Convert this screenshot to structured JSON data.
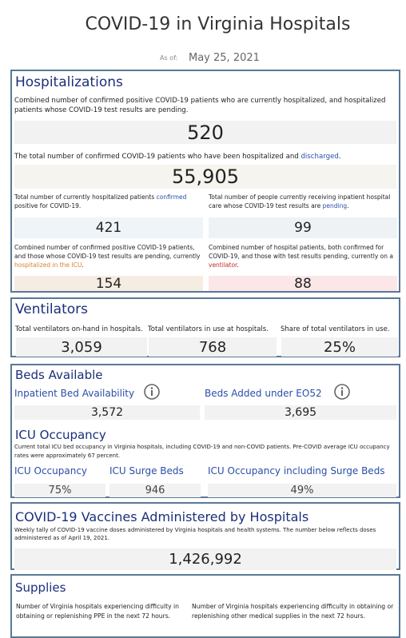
{
  "header": {
    "title": "COVID-19 in Virginia Hospitals",
    "as_of_label": "As of:",
    "date": "May 25, 2021"
  },
  "hospitalizations": {
    "heading": "Hospitalizations",
    "current": {
      "description": [
        {
          "text": "Combined number of confirmed positive COVID-19 patients who are currently hospitalized, and hospitalized patients whose COVID-19 test results are pending."
        }
      ],
      "value": "520"
    },
    "discharged": {
      "description": [
        {
          "text": "The total number of confirmed COVID-19 patients who have been hospitalized and "
        },
        {
          "text": "discharged",
          "color": "#2a4ea6"
        },
        {
          "text": "."
        }
      ],
      "value": "55,905"
    },
    "confirmed": {
      "description": [
        {
          "text": "Total number of currently hospitalized patients "
        },
        {
          "text": "confirmed",
          "color": "#2a4ea6"
        },
        {
          "text": " positive for COVID-19."
        }
      ],
      "value": "421"
    },
    "pending": {
      "description": [
        {
          "text": "Total number of people currently receiving inpatient hospital care whose COVID-19 test results are "
        },
        {
          "text": "pending",
          "color": "#2a4ea6"
        },
        {
          "text": "."
        }
      ],
      "value": "99"
    },
    "icu": {
      "description": [
        {
          "text": "Combined number of confirmed positive COVID-19 patients, and those whose COVID-19 test results are pending, currently "
        },
        {
          "text": "hospitalized in the ICU",
          "color": "#d9822b"
        },
        {
          "text": "."
        }
      ],
      "value": "154"
    },
    "ventilator": {
      "description": [
        {
          "text": "Combined number of hospital patients, both confirmed for COVID-19, and those with test results pending, currently on a "
        },
        {
          "text": "ventilator",
          "color": "#c62828"
        },
        {
          "text": "."
        }
      ],
      "value": "88"
    }
  },
  "ventilators": {
    "heading": "Ventilators",
    "items": [
      {
        "label": "Total ventilators on-hand in hospitals.",
        "value": "3,059"
      },
      {
        "label": "Total ventilators in use at hospitals.",
        "value": "768"
      },
      {
        "label": "Share of total ventilators in use.",
        "value": "25%"
      }
    ]
  },
  "beds": {
    "heading": "Beds Available",
    "items": [
      {
        "label": "Inpatient Bed Availability",
        "value": "3,572"
      },
      {
        "label": "Beds Added under EO52",
        "value": "3,695"
      }
    ],
    "icu": {
      "heading": "ICU Occupancy",
      "description": "Current total ICU bed occupancy in Virginia hospitals, including COVID-19 and non-COVID patients. Pre-COVID average ICU occupancy rates were approximately 67 percent.",
      "items": [
        {
          "label": "ICU Occupancy",
          "value": "75%"
        },
        {
          "label": "ICU Surge Beds",
          "value": "946"
        },
        {
          "label": "ICU Occupancy including Surge Beds",
          "value": "49%"
        }
      ]
    }
  },
  "vaccines": {
    "heading": "COVID-19 Vaccines Administered by Hospitals",
    "description": "Weekly tally of COVID-19 vaccine doses administered by Virginia hospitals and health systems. The number below reflects doses administered as of April 19, 2021.",
    "value": "1,426,992"
  },
  "supplies": {
    "heading": "Supplies",
    "items": [
      {
        "label": "Number of Virginia hospitals experiencing difficulty in obtaining or replenishing PPE in the next 72 hours."
      },
      {
        "label": "Number of Virginia hospitals experiencing difficulty in obtaining or replenishing other medical supplies in the next 72 hours."
      }
    ]
  }
}
